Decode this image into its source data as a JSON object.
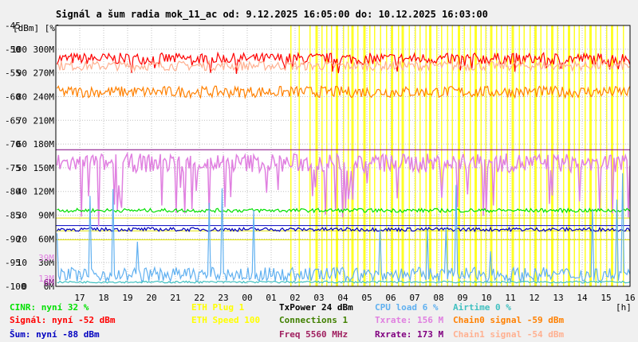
{
  "chart_data": {
    "type": "line",
    "title": "Signál a šum radia mok_11_ac od: 9.12.2025 16:05:00 do: 10.12.2025 16:03:00",
    "ylabel_units": "[dBm] [%]",
    "xlabel_unit": "[h]",
    "grid": true,
    "colors": {
      "background": "#f0f0f0",
      "plot": "#ffffff",
      "grid": "#c0c0c0",
      "highlight": "#ffff00",
      "cinr": "#00e000",
      "signal": "#ff0000",
      "noise": "#0000c0",
      "chain0": "#ff8000",
      "chain1": "#ffb090",
      "txrate": "#e080e0",
      "rxrate": "#800080",
      "cpu": "#60b0f0",
      "airtime": "#40c0c0",
      "txpower": "#000000",
      "connections": "#408000",
      "freq": "#a02060",
      "eth": "#ffff00"
    },
    "x_ticks": [
      "17",
      "18",
      "19",
      "20",
      "21",
      "22",
      "23",
      "00",
      "01",
      "02",
      "03",
      "04",
      "05",
      "06",
      "07",
      "08",
      "09",
      "10",
      "11",
      "12",
      "13",
      "14",
      "15",
      "16"
    ],
    "y_ticks": [
      {
        "dbm": "-45",
        "pct": "",
        "rate": ""
      },
      {
        "dbm": "-50",
        "pct": "100",
        "rate": "300M"
      },
      {
        "dbm": "-55",
        "pct": "90",
        "rate": "270M"
      },
      {
        "dbm": "-60",
        "pct": "80",
        "rate": "240M"
      },
      {
        "dbm": "-65",
        "pct": "70",
        "rate": "210M"
      },
      {
        "dbm": "-70",
        "pct": "60",
        "rate": "180M"
      },
      {
        "dbm": "-75",
        "pct": "50",
        "rate": "150M"
      },
      {
        "dbm": "-80",
        "pct": "40",
        "rate": "120M"
      },
      {
        "dbm": "-85",
        "pct": "30",
        "rate": "90M"
      },
      {
        "dbm": "-90",
        "pct": "20",
        "rate": "60M"
      },
      {
        "dbm": "-95",
        "pct": "10",
        "rate": "30M"
      },
      {
        "dbm": "-100",
        "pct": "0",
        "rate": "0M"
      }
    ],
    "extra_axis_labels": [
      {
        "text": "39M",
        "color": "#e080e0",
        "dbm": -94
      },
      {
        "text": "13M",
        "color": "#e080e0",
        "dbm": -98.3
      },
      {
        "text": "6M",
        "color": "#800080",
        "dbm": -99.2
      }
    ],
    "ylim": [
      -100,
      -45
    ],
    "xlim": [
      16,
      40
    ],
    "series": [
      {
        "name": "Signál",
        "type": "band",
        "level": -52,
        "spread": 1.2
      },
      {
        "name": "Chain1",
        "type": "band",
        "level": -53.5,
        "spread": 1.0
      },
      {
        "name": "Chain0",
        "type": "band",
        "level": -59,
        "spread": 1.2
      },
      {
        "name": "Txrate",
        "type": "band",
        "level": -74,
        "spread": 2.0
      },
      {
        "name": "CINR",
        "type": "band",
        "level": -84,
        "spread": 0.4
      },
      {
        "name": "Šum",
        "type": "band",
        "level": -88,
        "spread": 0.4
      },
      {
        "name": "CPU load",
        "type": "noise",
        "level": -99,
        "spread": 3
      },
      {
        "name": "Airtime",
        "type": "noise",
        "level": -99.3,
        "spread": 0.4
      }
    ],
    "reference_lines": [
      {
        "name": "Rxrate",
        "dbm": -71.2
      },
      {
        "name": "Šum",
        "dbm": -87.2
      },
      {
        "name": "yellow1",
        "dbm": -85.6
      },
      {
        "name": "yellow2",
        "dbm": -88.3
      },
      {
        "name": "yellow3",
        "dbm": -90.2
      }
    ],
    "highlight_hours": [
      [
        25.8,
        25.85
      ],
      [
        26.15,
        26.2
      ],
      [
        26.6,
        26.65
      ],
      [
        26.85,
        26.95
      ],
      [
        27.1,
        27.15
      ],
      [
        27.3,
        27.35
      ],
      [
        27.5,
        27.55
      ],
      [
        27.7,
        27.8
      ],
      [
        28.0,
        28.05
      ],
      [
        28.2,
        28.25
      ],
      [
        28.35,
        28.45
      ],
      [
        28.6,
        28.65
      ],
      [
        28.85,
        28.95
      ],
      [
        29.1,
        29.15
      ],
      [
        29.3,
        29.35
      ],
      [
        29.55,
        29.6
      ],
      [
        29.8,
        29.85
      ],
      [
        30.0,
        30.1
      ],
      [
        30.3,
        30.35
      ],
      [
        30.45,
        30.55
      ],
      [
        30.75,
        30.8
      ],
      [
        31.0,
        31.05
      ],
      [
        31.2,
        31.25
      ],
      [
        31.45,
        31.5
      ],
      [
        31.6,
        31.7
      ],
      [
        31.9,
        31.95
      ],
      [
        32.1,
        32.15
      ],
      [
        32.35,
        32.4
      ],
      [
        32.55,
        32.6
      ],
      [
        32.8,
        32.9
      ],
      [
        33.05,
        33.1
      ],
      [
        33.3,
        33.35
      ],
      [
        33.5,
        33.6
      ],
      [
        33.75,
        33.8
      ],
      [
        33.95,
        34.0
      ],
      [
        34.15,
        34.25
      ],
      [
        34.4,
        34.45
      ],
      [
        34.6,
        34.65
      ],
      [
        34.85,
        34.9
      ],
      [
        35.05,
        35.15
      ],
      [
        35.35,
        35.4
      ],
      [
        35.55,
        35.6
      ],
      [
        35.8,
        35.85
      ],
      [
        36.0,
        36.1
      ],
      [
        36.25,
        36.3
      ],
      [
        36.5,
        36.55
      ],
      [
        36.7,
        36.8
      ],
      [
        36.95,
        37.0
      ],
      [
        37.2,
        37.25
      ],
      [
        37.4,
        37.5
      ],
      [
        37.65,
        37.7
      ],
      [
        37.85,
        37.9
      ],
      [
        38.1,
        38.15
      ],
      [
        38.3,
        38.4
      ],
      [
        38.55,
        38.6
      ],
      [
        38.75,
        38.8
      ],
      [
        39.0,
        39.05
      ],
      [
        39.2,
        39.3
      ],
      [
        39.45,
        39.5
      ],
      [
        39.7,
        39.75
      ]
    ]
  },
  "legend": [
    {
      "text": "CINR: nyní 32 %",
      "color": "#00e000",
      "col": 0,
      "row": 0
    },
    {
      "text": "Signál: nyní -52 dBm",
      "color": "#ff0000",
      "col": 0,
      "row": 1
    },
    {
      "text": "Šum: nyní -88 dBm",
      "color": "#0000c0",
      "col": 0,
      "row": 2
    },
    {
      "text": "ETH Plug 1",
      "color": "#ffff00",
      "col": 1,
      "row": 0
    },
    {
      "text": "ETH Speed 100",
      "color": "#ffff00",
      "col": 1,
      "row": 1
    },
    {
      "text": "TxPower 24 dBm",
      "color": "#000000",
      "col": 2,
      "row": 0
    },
    {
      "text": "Connections 1",
      "color": "#408000",
      "col": 2,
      "row": 1
    },
    {
      "text": "Freq 5560 MHz",
      "color": "#a02060",
      "col": 2,
      "row": 2
    },
    {
      "text": "CPU load 6 %",
      "color": "#60b0f0",
      "col": 3,
      "row": 0
    },
    {
      "text": "Txrate: 156 M",
      "color": "#e080e0",
      "col": 3,
      "row": 1
    },
    {
      "text": "Rxrate: 173 M",
      "color": "#800080",
      "col": 3,
      "row": 2
    },
    {
      "text": "Airtime 0 %",
      "color": "#40c0c0",
      "col": 4,
      "row": 0
    },
    {
      "text": "Chain0 signal -59 dBm",
      "color": "#ff8000",
      "col": 4,
      "row": 1
    },
    {
      "text": "Chain1 signal -54 dBm",
      "color": "#ffb090",
      "col": 4,
      "row": 2
    }
  ]
}
